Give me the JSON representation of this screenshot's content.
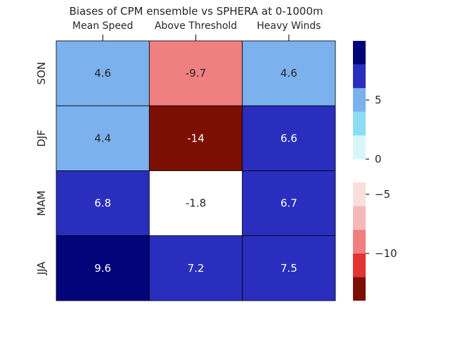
{
  "chart_data": {
    "type": "heatmap",
    "title": "Biases of CPM ensemble vs SPHERA at 0-1000m",
    "columns": [
      "Mean Speed",
      "Above Threshold",
      "Heavy Winds"
    ],
    "rows": [
      "SON",
      "DJF",
      "MAM",
      "JJA"
    ],
    "values": [
      [
        4.6,
        -9.7,
        4.6
      ],
      [
        4.4,
        -14,
        6.6
      ],
      [
        6.8,
        -1.8,
        6.7
      ],
      [
        9.6,
        7.2,
        7.5
      ]
    ],
    "value_labels": [
      [
        "4.6",
        "-9.7",
        "4.6"
      ],
      [
        "4.4",
        "-14",
        "6.6"
      ],
      [
        "6.8",
        "-1.8",
        "6.7"
      ],
      [
        "9.6",
        "7.2",
        "7.5"
      ]
    ],
    "colorbar": {
      "positive_bins": [
        {
          "from": 0,
          "to": 2,
          "color": "#d8f6f7"
        },
        {
          "from": 2,
          "to": 4,
          "color": "#8cdcf5"
        },
        {
          "from": 4,
          "to": 6,
          "color": "#7bb1ec"
        },
        {
          "from": 6,
          "to": 8,
          "color": "#2a2ebf"
        },
        {
          "from": 8,
          "to": 10,
          "color": "#03037a"
        }
      ],
      "negative_bins": [
        {
          "from": -14,
          "to": -12,
          "color": "#7c0f03"
        },
        {
          "from": -12,
          "to": -10,
          "color": "#e33432"
        },
        {
          "from": -10,
          "to": -8,
          "color": "#f07f7f"
        },
        {
          "from": -8,
          "to": -6,
          "color": "#f6b9b8"
        },
        {
          "from": -6,
          "to": -4,
          "color": "#f8dfdd"
        }
      ],
      "positive_ticks": [
        {
          "value": 0,
          "label": "0"
        },
        {
          "value": 5,
          "label": "5"
        }
      ],
      "negative_ticks": [
        {
          "value": -10,
          "label": "−10"
        },
        {
          "value": -5,
          "label": "−5"
        }
      ],
      "neutral_color": "#ffffff"
    }
  }
}
